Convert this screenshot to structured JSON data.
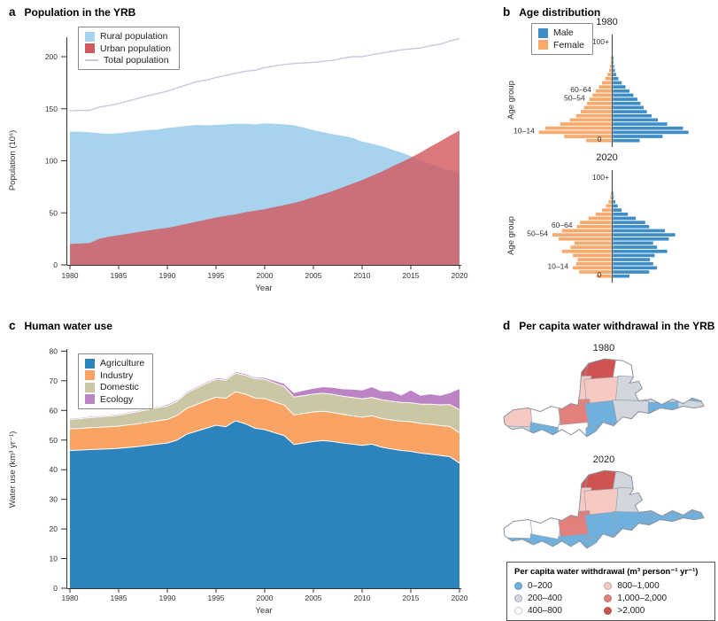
{
  "figure": {
    "panels": {
      "a": {
        "letter": "a"
      },
      "b": {
        "letter": "b"
      },
      "c": {
        "letter": "c"
      },
      "d": {
        "letter": "d"
      }
    }
  },
  "chart_data": [
    {
      "id": "population",
      "type": "area",
      "title": "Population in the YRB",
      "xlabel": "Year",
      "ylabel": "Population (10⁶)",
      "x_start": 1980,
      "x_step": 1,
      "x_ticks": [
        "1980",
        "1985",
        "1990",
        "1995",
        "2000",
        "2005",
        "2010",
        "2015",
        "2020"
      ],
      "y_ticks": [
        0,
        50,
        100,
        150,
        200
      ],
      "ylim": [
        0,
        230
      ],
      "series": [
        {
          "name": "Rural population",
          "color": "#a7d3ee",
          "values": [
            128,
            128,
            127.5,
            126.5,
            126,
            126.5,
            127.5,
            128.5,
            129.5,
            130,
            131.5,
            132.5,
            133.5,
            134.5,
            134,
            134.5,
            135,
            135.5,
            135.5,
            135,
            136,
            135.5,
            135,
            134,
            132,
            129.5,
            127.5,
            125.5,
            124,
            122,
            118.5,
            116.5,
            114,
            111,
            108,
            104.5,
            100.5,
            97,
            93.5,
            91,
            88.5
          ]
        },
        {
          "name": "Urban population",
          "color": "#d15a60",
          "values": [
            20,
            20.5,
            21,
            25,
            27,
            28.5,
            30,
            31.5,
            33,
            34.5,
            35.5,
            37.5,
            39.5,
            41.5,
            43.5,
            45.5,
            47,
            48.5,
            50.5,
            52,
            53.5,
            55.5,
            57.5,
            59.5,
            62,
            65,
            68,
            71,
            74.5,
            78,
            81.5,
            85.5,
            89.5,
            94,
            98.5,
            103,
            108,
            113.5,
            118.5,
            124,
            129
          ]
        },
        {
          "name": "Total population",
          "color": "#c6c8dc",
          "kind": "line",
          "values": [
            148,
            148.5,
            148.5,
            151.5,
            153,
            155,
            157.5,
            160,
            162.5,
            164.5,
            167,
            170,
            173,
            176,
            177.5,
            180,
            182,
            184,
            186,
            187,
            189.5,
            191,
            192.5,
            193.5,
            194,
            194.5,
            195.5,
            196.5,
            198.5,
            200,
            200,
            202,
            203.5,
            205,
            206.5,
            207.5,
            208.5,
            210.5,
            212,
            215,
            217.5
          ]
        }
      ]
    },
    {
      "id": "age-distribution",
      "type": "population_pyramid",
      "title": "Age distribution",
      "ylabel": "Age group",
      "male_label": "Male",
      "female_label": "Female",
      "male_color": "#3f8dc6",
      "female_color": "#f9a96b",
      "bins": [
        "0–4",
        "5–9",
        "10–14",
        "15–19",
        "20–24",
        "25–29",
        "30–34",
        "35–39",
        "40–44",
        "45–49",
        "50–54",
        "55–59",
        "60–64",
        "65–69",
        "70–74",
        "75–79",
        "80–84",
        "85–89",
        "90–94",
        "95–99",
        "100+"
      ],
      "age_axis_labels": [
        {
          "label": "100+",
          "bin": 20
        },
        {
          "label": "60–64",
          "bin": 12
        },
        {
          "label": "50–54",
          "bin": 10
        },
        {
          "label": "10–14",
          "bin": 2
        },
        {
          "label": "0",
          "bin": 0
        }
      ],
      "pyramids": [
        {
          "year": "1980",
          "male": [
            3.4,
            6.3,
            9.6,
            8.9,
            6.9,
            5.7,
            4.9,
            4.3,
            3.9,
            3.5,
            3.1,
            2.6,
            2.1,
            1.6,
            1.1,
            0.7,
            0.4,
            0.25,
            0.15,
            0.08,
            0.05
          ],
          "female": [
            3.2,
            6.0,
            9.2,
            8.4,
            6.5,
            5.3,
            4.5,
            3.9,
            3.5,
            3.1,
            2.8,
            2.4,
            2.0,
            1.6,
            1.2,
            0.8,
            0.5,
            0.3,
            0.18,
            0.1,
            0.06
          ]
        },
        {
          "year": "2020",
          "male": [
            2.1,
            4.6,
            5.6,
            5.1,
            4.7,
            5.3,
            6.9,
            5.6,
            5.1,
            7.1,
            7.9,
            6.6,
            4.6,
            4.1,
            2.9,
            1.9,
            1.1,
            0.6,
            0.3,
            0.12,
            0.06
          ],
          "female": [
            1.9,
            4.1,
            4.9,
            4.5,
            4.3,
            4.9,
            6.3,
            5.2,
            4.7,
            6.7,
            7.5,
            6.3,
            4.4,
            4.0,
            2.9,
            2.0,
            1.2,
            0.7,
            0.38,
            0.16,
            0.08
          ]
        }
      ]
    },
    {
      "id": "water-use",
      "type": "stacked_area",
      "title": "Human water use",
      "xlabel": "Year",
      "ylabel": "Water use (km³ yr⁻¹)",
      "x_start": 1980,
      "x_step": 1,
      "x_ticks": [
        "1980",
        "1985",
        "1990",
        "1995",
        "2000",
        "2005",
        "2010",
        "2015",
        "2020"
      ],
      "y_ticks": [
        0,
        10,
        20,
        30,
        40,
        50,
        60,
        70,
        80
      ],
      "ylim": [
        0,
        80
      ],
      "series": [
        {
          "name": "Agriculture",
          "color": "#2d83bb",
          "values": [
            46.5,
            46.6,
            46.8,
            46.9,
            47,
            47.2,
            47.5,
            47.8,
            48.2,
            48.6,
            49,
            50,
            52,
            53,
            54,
            55,
            54.5,
            56.5,
            55.5,
            54,
            53.5,
            52.5,
            51.5,
            48.5,
            49,
            49.5,
            49.8,
            49.5,
            49,
            48.6,
            48.2,
            48.6,
            47.6,
            47,
            46.5,
            46.2,
            45.6,
            45.2,
            44.8,
            44.4,
            42.2
          ]
        },
        {
          "name": "Industry",
          "color": "#f9a364",
          "values": [
            7.3,
            7.3,
            7.4,
            7.4,
            7.5,
            7.5,
            7.6,
            7.7,
            7.8,
            7.9,
            8,
            8.3,
            8.7,
            9,
            9.3,
            9.5,
            9.6,
            9.8,
            10,
            10.2,
            10.5,
            10.4,
            10.3,
            10,
            10,
            10,
            9.9,
            9.8,
            9.7,
            9.6,
            9.5,
            9.6,
            9.7,
            9.8,
            9.9,
            10,
            10,
            10.1,
            10.1,
            10.2,
            10.2
          ]
        },
        {
          "name": "Domestic",
          "color": "#cbc7a5",
          "values": [
            3.2,
            3.3,
            3.4,
            3.5,
            3.6,
            3.7,
            3.9,
            4.1,
            4.3,
            4.4,
            4.5,
            4.8,
            5.2,
            5.5,
            5.8,
            6,
            6.1,
            6.3,
            6.4,
            6.5,
            6.5,
            6.4,
            6.3,
            6,
            6,
            6,
            6.1,
            6.1,
            6.1,
            6.2,
            6.2,
            6.2,
            6.3,
            6.3,
            6.3,
            6.4,
            6.5,
            6.8,
            7,
            7.4,
            7.8
          ]
        },
        {
          "name": "Ecology",
          "color": "#bc84c5",
          "values": [
            0.4,
            0.4,
            0.4,
            0.4,
            0.4,
            0.4,
            0.4,
            0.4,
            0.4,
            0.4,
            0.5,
            0.5,
            0.5,
            0.5,
            0.5,
            0.5,
            0.5,
            0.5,
            0.5,
            0.5,
            0.6,
            0.8,
            1,
            1.5,
            1.8,
            2,
            2.2,
            2.4,
            2.5,
            2.8,
            3,
            3.6,
            3,
            3.5,
            2.5,
            4.3,
            3,
            3.5,
            3.2,
            4,
            7.2
          ]
        }
      ]
    },
    {
      "id": "per-capita-withdrawal",
      "type": "choropleth_maps",
      "title": "Per capita water withdrawal in the YRB",
      "legend_title": "Per capita water withdrawal (m³ person⁻¹ yr⁻¹)",
      "classes": [
        {
          "label": "0–200",
          "color": "#6fb0dc"
        },
        {
          "label": "200–400",
          "color": "#d2d7df"
        },
        {
          "label": "400–800",
          "color": "#ffffff"
        },
        {
          "label": "800–1,000",
          "color": "#f6c9c2"
        },
        {
          "label": "1,000–2,000",
          "color": "#e2807b"
        },
        {
          "label": ">2,000",
          "color": "#cf5350"
        }
      ],
      "maps": [
        {
          "year": "1980",
          "cells": [
            1,
            1,
            5,
            5,
            2,
            1,
            1,
            1,
            1,
            3,
            3,
            1,
            1,
            0,
            3,
            2,
            4,
            0,
            1,
            0,
            1,
            1,
            0,
            2,
            0,
            1,
            0,
            0
          ]
        },
        {
          "year": "2020",
          "cells": [
            1,
            1,
            5,
            5,
            1,
            1,
            1,
            1,
            1,
            3,
            3,
            1,
            0,
            0,
            2,
            2,
            4,
            0,
            0,
            0,
            0,
            0,
            0,
            0,
            0,
            1,
            0,
            0
          ]
        }
      ]
    }
  ]
}
